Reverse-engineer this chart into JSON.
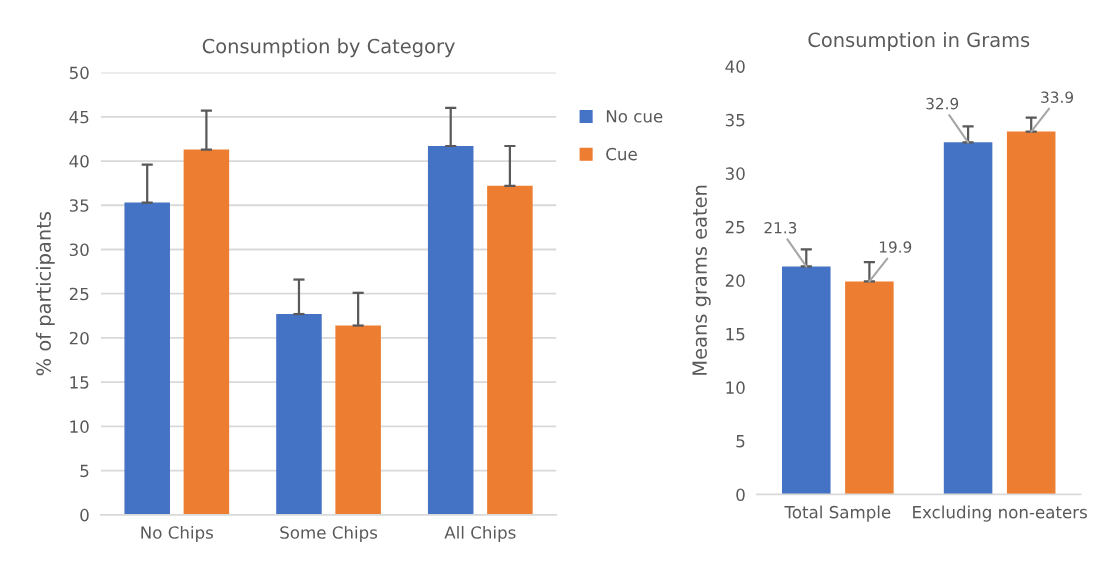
{
  "chart_data": [
    {
      "type": "bar",
      "title": "Consumption by Category",
      "ylabel": "% of participants",
      "categories": [
        "No Chips",
        "Some Chips",
        "All Chips"
      ],
      "series": [
        {
          "name": "No cue",
          "color": "#4472c4",
          "values": [
            35.3,
            22.7,
            41.7
          ],
          "errors": [
            [
              35.3,
              39.6
            ],
            [
              22.7,
              26.6
            ],
            [
              41.7,
              46.0
            ]
          ]
        },
        {
          "name": "Cue",
          "color": "#ed7d31",
          "values": [
            41.3,
            21.4,
            37.2
          ],
          "errors": [
            [
              41.3,
              45.7
            ],
            [
              21.4,
              25.1
            ],
            [
              37.2,
              41.7
            ]
          ]
        }
      ],
      "ylim": [
        0,
        50
      ],
      "yticks": [
        0,
        5,
        10,
        15,
        20,
        25,
        30,
        35,
        40,
        45,
        50
      ],
      "grid": "y",
      "legend": "right"
    },
    {
      "type": "bar",
      "title": "Consumption in Grams",
      "ylabel": "Means grams eaten",
      "categories": [
        "Total Sample",
        "Excluding non-eaters"
      ],
      "series": [
        {
          "color": "#4472c4",
          "values": [
            21.3,
            32.9
          ],
          "errors": [
            [
              21.3,
              22.9
            ],
            [
              32.9,
              34.4
            ]
          ]
        },
        {
          "color": "#ed7d31",
          "values": [
            19.9,
            33.9
          ],
          "errors": [
            [
              19.9,
              21.7
            ],
            [
              33.9,
              35.2
            ]
          ]
        }
      ],
      "ylim": [
        0,
        40
      ],
      "yticks": [
        0,
        5,
        10,
        15,
        20,
        25,
        30,
        35,
        40
      ],
      "grid": false,
      "data_labels": true
    }
  ]
}
